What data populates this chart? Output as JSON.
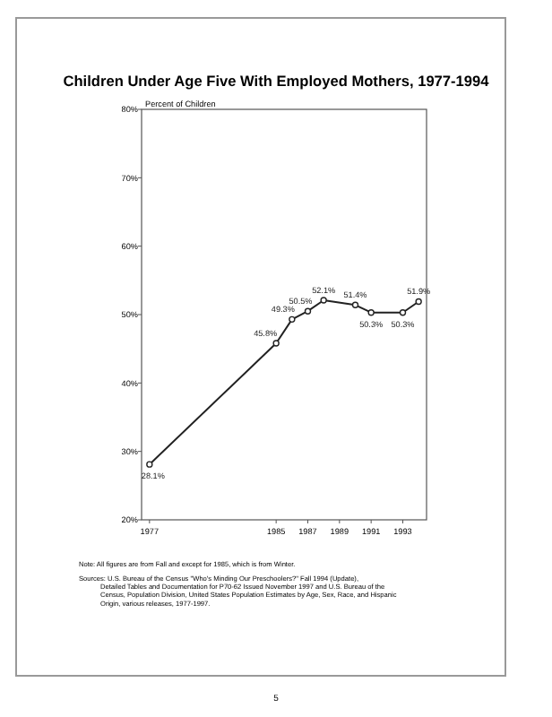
{
  "chart_data": {
    "type": "line",
    "title": "Children Under Age Five With Employed Mothers, 1977-1994",
    "ylabel": "Percent of Children",
    "x": [
      1977,
      1985,
      1986,
      1987,
      1988,
      1990,
      1991,
      1993,
      1994
    ],
    "series": [
      {
        "color": "#222222",
        "values": [
          28.1,
          45.8,
          49.3,
          50.5,
          52.1,
          51.4,
          50.3,
          50.3,
          51.9
        ],
        "value_labels": [
          "28.1%",
          "45.8%",
          "49.3%",
          "50.5%",
          "52.1%",
          "51.4%",
          "50.3%",
          "50.3%",
          "51.9%"
        ]
      }
    ],
    "xlim": [
      1976.5,
      1994.5
    ],
    "xticks": [
      1977,
      1985,
      1987,
      1989,
      1991,
      1993
    ],
    "ylim": [
      20,
      80
    ],
    "yticks": [
      {
        "value": 20,
        "label": "20%"
      },
      {
        "value": 30,
        "label": "30%"
      },
      {
        "value": 40,
        "label": "40%"
      },
      {
        "value": 50,
        "label": "50%"
      },
      {
        "value": 60,
        "label": "60%"
      },
      {
        "value": 70,
        "label": "70%"
      },
      {
        "value": 80,
        "label": "80%"
      }
    ],
    "grid": false,
    "marker": "circle",
    "line_style": "solid",
    "annotations": [
      "Note: All figures are from Fall and except for 1985, which is from Winter.",
      "Sources: U.S. Bureau of the Census \"Who's Minding Our Preschoolers?\" Fall 1994 (Update), Detailed Tables and Documentation for P70-62 Issued November 1997 and U.S. Bureau of the Census, Population Division, United States Population Estimates by Age, Sex, Race, and Hispanic Origin, various releases, 1977-1997.",
      "5"
    ]
  }
}
